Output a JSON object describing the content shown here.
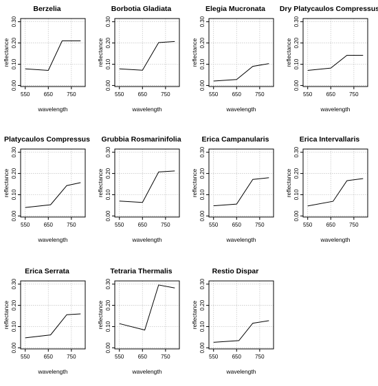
{
  "page": {
    "background": "#ffffff",
    "line_color": "#000000",
    "grid_color": "#c8c8c8"
  },
  "chart_data": [
    {
      "type": "line",
      "title": "Berzelia",
      "xlabel": "wavelength",
      "ylabel": "reflectance",
      "x_ticks": [
        "550",
        "650",
        "750"
      ],
      "y_ticks": [
        "0.00",
        "0.10",
        "0.20",
        "0.30"
      ],
      "xlim": [
        530,
        810
      ],
      "ylim": [
        -0.005,
        0.315
      ],
      "grid": true,
      "x": [
        550,
        650,
        710,
        790
      ],
      "y": [
        0.078,
        0.071,
        0.21,
        0.21
      ]
    },
    {
      "type": "line",
      "title": "Borbotia Gladiata",
      "xlabel": "wavelength",
      "ylabel": "reflectance",
      "x_ticks": [
        "550",
        "650",
        "750"
      ],
      "y_ticks": [
        "0.00",
        "0.10",
        "0.20",
        "0.30"
      ],
      "xlim": [
        530,
        810
      ],
      "ylim": [
        -0.005,
        0.315
      ],
      "grid": true,
      "x": [
        550,
        650,
        720,
        790
      ],
      "y": [
        0.078,
        0.072,
        0.202,
        0.207
      ]
    },
    {
      "type": "line",
      "title": "Elegia Mucronata",
      "xlabel": "wavelength",
      "ylabel": "reflectance",
      "x_ticks": [
        "550",
        "650",
        "750"
      ],
      "y_ticks": [
        "0.00",
        "0.10",
        "0.20",
        "0.30"
      ],
      "xlim": [
        530,
        810
      ],
      "ylim": [
        -0.005,
        0.315
      ],
      "grid": true,
      "x": [
        550,
        650,
        720,
        790
      ],
      "y": [
        0.021,
        0.028,
        0.09,
        0.103
      ]
    },
    {
      "type": "line",
      "title": "Dry Platycaulos Compressus",
      "xlabel": "wavelength",
      "ylabel": "reflectance",
      "x_ticks": [
        "550",
        "650",
        "750"
      ],
      "y_ticks": [
        "0.00",
        "0.10",
        "0.20",
        "0.30"
      ],
      "xlim": [
        530,
        810
      ],
      "ylim": [
        -0.005,
        0.315
      ],
      "grid": true,
      "x": [
        550,
        650,
        720,
        790
      ],
      "y": [
        0.071,
        0.082,
        0.142,
        0.142
      ]
    },
    {
      "type": "line",
      "title": "Platycaulos Compressus",
      "xlabel": "wavelength",
      "ylabel": "reflectance",
      "x_ticks": [
        "550",
        "650",
        "750"
      ],
      "y_ticks": [
        "0.00",
        "0.10",
        "0.20",
        "0.30"
      ],
      "xlim": [
        530,
        810
      ],
      "ylim": [
        -0.005,
        0.315
      ],
      "grid": true,
      "x": [
        550,
        660,
        730,
        790
      ],
      "y": [
        0.04,
        0.053,
        0.143,
        0.157
      ]
    },
    {
      "type": "line",
      "title": "Grubbia Rosmarinifolia",
      "xlabel": "wavelength",
      "ylabel": "reflectance",
      "x_ticks": [
        "550",
        "650",
        "750"
      ],
      "y_ticks": [
        "0.00",
        "0.10",
        "0.20",
        "0.30"
      ],
      "xlim": [
        530,
        810
      ],
      "ylim": [
        -0.005,
        0.315
      ],
      "grid": true,
      "x": [
        550,
        650,
        720,
        790
      ],
      "y": [
        0.07,
        0.064,
        0.207,
        0.212
      ]
    },
    {
      "type": "line",
      "title": "Erica Campanularis",
      "xlabel": "wavelength",
      "ylabel": "reflectance",
      "x_ticks": [
        "550",
        "650",
        "750"
      ],
      "y_ticks": [
        "0.00",
        "0.10",
        "0.20",
        "0.30"
      ],
      "xlim": [
        530,
        810
      ],
      "ylim": [
        -0.005,
        0.315
      ],
      "grid": true,
      "x": [
        550,
        650,
        720,
        790
      ],
      "y": [
        0.048,
        0.056,
        0.172,
        0.18
      ]
    },
    {
      "type": "line",
      "title": "Erica Intervallaris",
      "xlabel": "wavelength",
      "ylabel": "reflectance",
      "x_ticks": [
        "550",
        "650",
        "750"
      ],
      "y_ticks": [
        "0.00",
        "0.10",
        "0.20",
        "0.30"
      ],
      "xlim": [
        530,
        810
      ],
      "ylim": [
        -0.005,
        0.315
      ],
      "grid": true,
      "x": [
        550,
        660,
        720,
        790
      ],
      "y": [
        0.047,
        0.069,
        0.166,
        0.176
      ]
    },
    {
      "type": "line",
      "title": "Erica Serrata",
      "xlabel": "wavelength",
      "ylabel": "reflectance",
      "x_ticks": [
        "550",
        "650",
        "750"
      ],
      "y_ticks": [
        "0.00",
        "0.10",
        "0.20",
        "0.30"
      ],
      "xlim": [
        530,
        810
      ],
      "ylim": [
        -0.005,
        0.315
      ],
      "grid": true,
      "x": [
        550,
        660,
        730,
        790
      ],
      "y": [
        0.047,
        0.061,
        0.156,
        0.16
      ]
    },
    {
      "type": "line",
      "title": "Tetraria Thermalis",
      "xlabel": "wavelength",
      "ylabel": "reflectance",
      "x_ticks": [
        "550",
        "650",
        "750"
      ],
      "y_ticks": [
        "0.00",
        "0.10",
        "0.20",
        "0.30"
      ],
      "xlim": [
        530,
        810
      ],
      "ylim": [
        -0.005,
        0.315
      ],
      "grid": true,
      "x": [
        550,
        660,
        720,
        790
      ],
      "y": [
        0.114,
        0.084,
        0.296,
        0.282
      ]
    },
    {
      "type": "line",
      "title": "Restio Dispar",
      "xlabel": "wavelength",
      "ylabel": "reflectance",
      "x_ticks": [
        "550",
        "650",
        "750"
      ],
      "y_ticks": [
        "0.00",
        "0.10",
        "0.20",
        "0.30"
      ],
      "xlim": [
        530,
        810
      ],
      "ylim": [
        -0.005,
        0.315
      ],
      "grid": true,
      "x": [
        550,
        660,
        720,
        790
      ],
      "y": [
        0.026,
        0.034,
        0.116,
        0.128
      ]
    }
  ]
}
